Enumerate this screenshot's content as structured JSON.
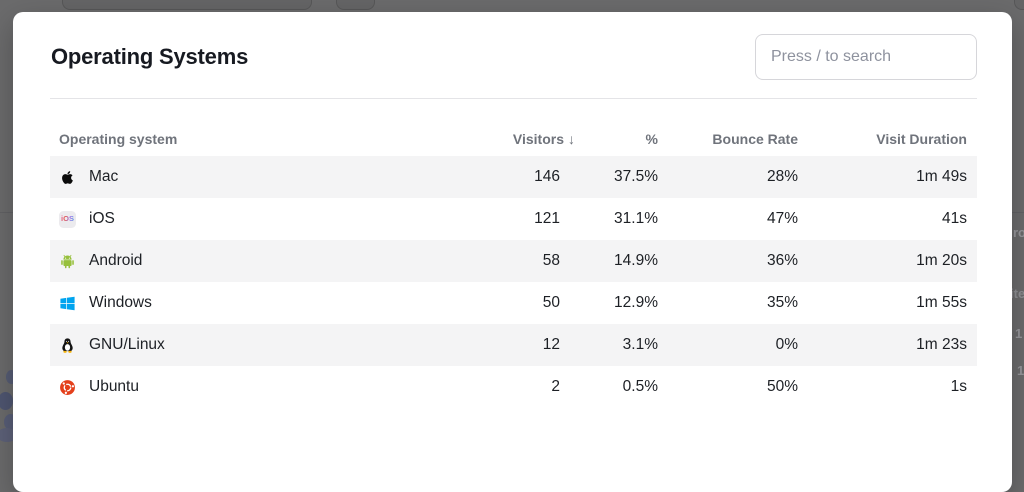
{
  "backdrop": {
    "fragments": [
      "ro",
      "ite",
      "1",
      "1"
    ]
  },
  "modal": {
    "title": "Operating Systems",
    "search": {
      "placeholder": "Press / to search"
    },
    "icons": {
      "ios_badge_text": "iOS"
    },
    "table": {
      "columns": {
        "name": "Operating system",
        "visitors": "Visitors",
        "sort_arrow": "↓",
        "percent": "%",
        "bounce": "Bounce Rate",
        "duration": "Visit Duration"
      },
      "rows": [
        {
          "icon": "apple-icon",
          "name": "Mac",
          "visitors": "146",
          "percent": "37.5%",
          "bounce": "28%",
          "duration": "1m 49s"
        },
        {
          "icon": "ios-icon",
          "name": "iOS",
          "visitors": "121",
          "percent": "31.1%",
          "bounce": "47%",
          "duration": "41s"
        },
        {
          "icon": "android-icon",
          "name": "Android",
          "visitors": "58",
          "percent": "14.9%",
          "bounce": "36%",
          "duration": "1m 20s"
        },
        {
          "icon": "windows-icon",
          "name": "Windows",
          "visitors": "50",
          "percent": "12.9%",
          "bounce": "35%",
          "duration": "1m 55s"
        },
        {
          "icon": "linux-icon",
          "name": "GNU/Linux",
          "visitors": "12",
          "percent": "3.1%",
          "bounce": "0%",
          "duration": "1m 23s"
        },
        {
          "icon": "ubuntu-icon",
          "name": "Ubuntu",
          "visitors": "2",
          "percent": "0.5%",
          "bounce": "50%",
          "duration": "1s"
        }
      ]
    }
  },
  "colors": {
    "overlay": "#6b6b6c",
    "modal_bg": "#ffffff",
    "stripe": "#f4f4f5",
    "header_text": "#6f737b",
    "body_text": "#1d2025",
    "android_green": "#97c03d",
    "windows_blue": "#00a4ef",
    "ubuntu_orange": "#e4401c"
  }
}
